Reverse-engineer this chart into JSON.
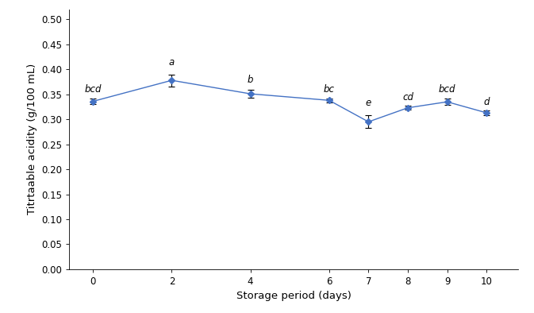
{
  "x": [
    0,
    2,
    4,
    6,
    7,
    8,
    9,
    10
  ],
  "y": [
    0.336,
    0.378,
    0.351,
    0.338,
    0.295,
    0.323,
    0.335,
    0.313
  ],
  "yerr": [
    0.005,
    0.012,
    0.008,
    0.004,
    0.013,
    0.004,
    0.006,
    0.004
  ],
  "labels": [
    "bcd",
    "a",
    "b",
    "bc",
    "e",
    "cd",
    "bcd",
    "d"
  ],
  "label_offsets": [
    0.008,
    0.014,
    0.01,
    0.008,
    0.015,
    0.007,
    0.009,
    0.007
  ],
  "line_color": "#4472C4",
  "marker": "D",
  "marker_size": 4,
  "xlabel": "Storage period (days)",
  "ylabel": "Titrtaable acidity (g/100 mL)",
  "ylim": [
    0.0,
    0.52
  ],
  "yticks": [
    0.0,
    0.05,
    0.1,
    0.15,
    0.2,
    0.25,
    0.3,
    0.35,
    0.4,
    0.45,
    0.5
  ],
  "xticks": [
    0,
    2,
    4,
    6,
    7,
    8,
    9,
    10
  ],
  "label_fontsize": 8.5,
  "axis_label_fontsize": 9.5,
  "tick_fontsize": 8.5,
  "background_color": "#ffffff",
  "fig_width": 6.73,
  "fig_height": 3.94,
  "dpi": 100
}
